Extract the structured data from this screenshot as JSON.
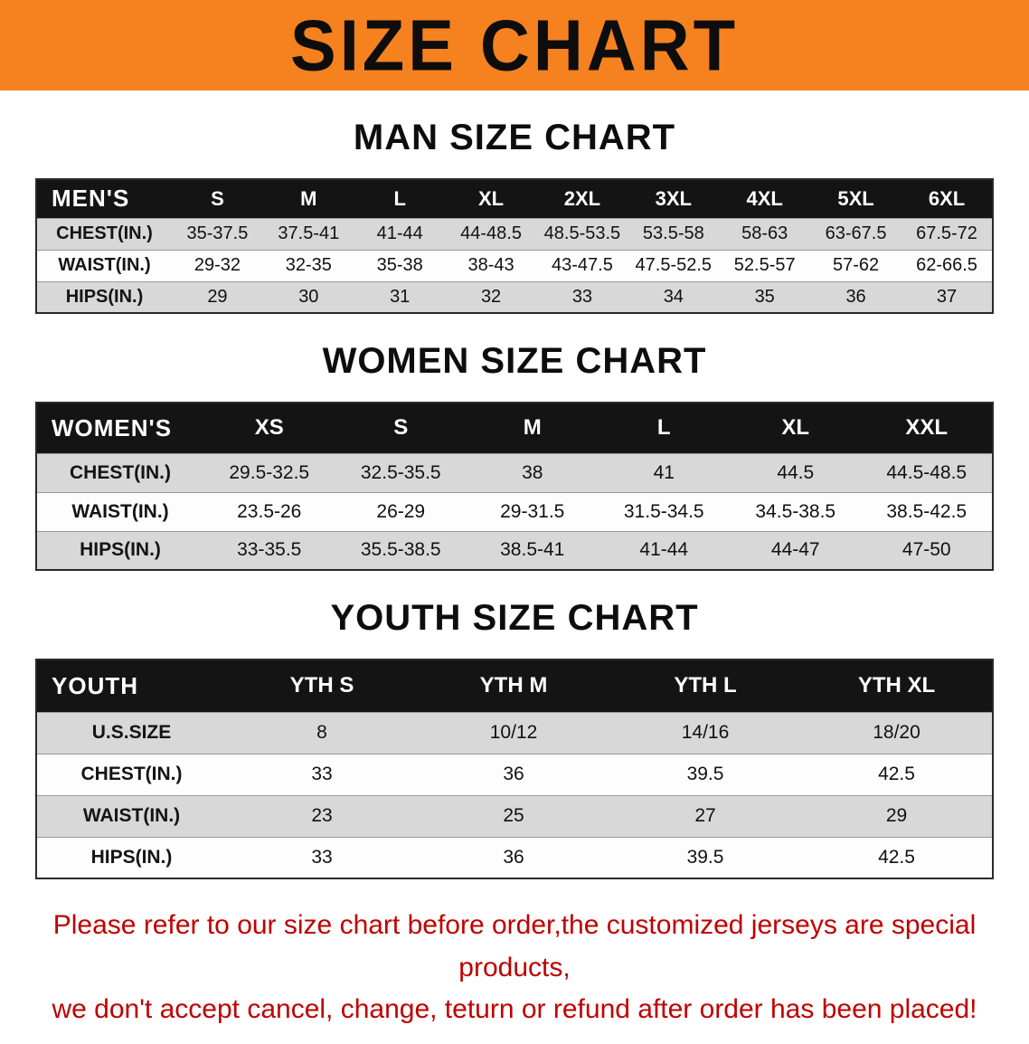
{
  "banner": {
    "title": "SIZE CHART",
    "bg_color": "#f5821f"
  },
  "sections": [
    {
      "id": "men",
      "heading": "MAN SIZE CHART",
      "table": {
        "header_label": "MEN'S",
        "columns": [
          "S",
          "M",
          "L",
          "XL",
          "2XL",
          "3XL",
          "4XL",
          "5XL",
          "6XL"
        ],
        "rows": [
          {
            "label": "CHEST(IN.)",
            "values": [
              "35-37.5",
              "37.5-41",
              "41-44",
              "44-48.5",
              "48.5-53.5",
              "53.5-58",
              "58-63",
              "63-67.5",
              "67.5-72"
            ]
          },
          {
            "label": "WAIST(IN.)",
            "values": [
              "29-32",
              "32-35",
              "35-38",
              "38-43",
              "43-47.5",
              "47.5-52.5",
              "52.5-57",
              "57-62",
              "62-66.5"
            ]
          },
          {
            "label": "HIPS(IN.)",
            "values": [
              "29",
              "30",
              "31",
              "32",
              "33",
              "34",
              "35",
              "36",
              "37"
            ]
          }
        ]
      }
    },
    {
      "id": "women",
      "heading": "WOMEN SIZE CHART",
      "table": {
        "header_label": "WOMEN'S",
        "columns": [
          "XS",
          "S",
          "M",
          "L",
          "XL",
          "XXL"
        ],
        "rows": [
          {
            "label": "CHEST(IN.)",
            "values": [
              "29.5-32.5",
              "32.5-35.5",
              "38",
              "41",
              "44.5",
              "44.5-48.5"
            ]
          },
          {
            "label": "WAIST(IN.)",
            "values": [
              "23.5-26",
              "26-29",
              "29-31.5",
              "31.5-34.5",
              "34.5-38.5",
              "38.5-42.5"
            ]
          },
          {
            "label": "HIPS(IN.)",
            "values": [
              "33-35.5",
              "35.5-38.5",
              "38.5-41",
              "41-44",
              "44-47",
              "47-50"
            ]
          }
        ]
      }
    },
    {
      "id": "youth",
      "heading": "YOUTH SIZE CHART",
      "table": {
        "header_label": "YOUTH",
        "columns": [
          "YTH S",
          "YTH M",
          "YTH L",
          "YTH XL"
        ],
        "rows": [
          {
            "label": "U.S.SIZE",
            "values": [
              "8",
              "10/12",
              "14/16",
              "18/20"
            ]
          },
          {
            "label": "CHEST(IN.)",
            "values": [
              "33",
              "36",
              "39.5",
              "42.5"
            ]
          },
          {
            "label": "WAIST(IN.)",
            "values": [
              "23",
              "25",
              "27",
              "29"
            ]
          },
          {
            "label": "HIPS(IN.)",
            "values": [
              "33",
              "36",
              "39.5",
              "42.5"
            ]
          }
        ]
      }
    }
  ],
  "disclaimer": {
    "line1": "Please refer to our size chart before order,the customized jerseys are special products,",
    "line2": "we don't accept cancel, change, teturn or refund after order has been placed!",
    "color": "#bf0000"
  }
}
